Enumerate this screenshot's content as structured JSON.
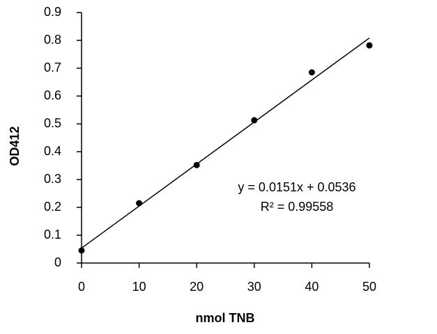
{
  "chart_data": {
    "type": "scatter",
    "x_label": "nmol TNB",
    "y_label": "OD412",
    "x": [
      0,
      10,
      20,
      30,
      40,
      50
    ],
    "series": [
      {
        "color": "#000000",
        "values": [
          0.045,
          0.215,
          0.352,
          0.513,
          0.685,
          0.782
        ]
      }
    ],
    "trendline": {
      "color": "#000000",
      "x": [
        0,
        50
      ],
      "values": [
        0.0536,
        0.8086
      ]
    },
    "annotations": [
      "y = 0.0151x + 0.0536",
      "R² = 0.99558"
    ],
    "xlim": [
      0,
      50
    ],
    "ylim": [
      0,
      0.9
    ],
    "xticks": [
      0,
      10,
      20,
      30,
      40,
      50
    ],
    "yticks": [
      0,
      0.1,
      0.2,
      0.3,
      0.4,
      0.5,
      0.6,
      0.7,
      0.8,
      0.9
    ],
    "grid": false
  }
}
